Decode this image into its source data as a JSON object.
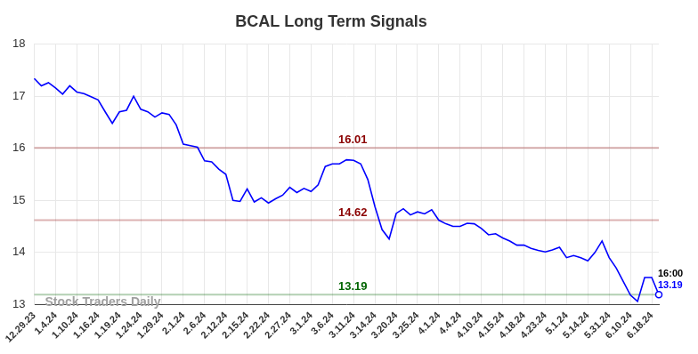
{
  "chart_data": {
    "type": "line",
    "title": "BCAL Long Term Signals",
    "categories": [
      "12.29.23",
      null,
      null,
      "1.4.24",
      null,
      null,
      "1.10.24",
      null,
      null,
      "1.16.24",
      null,
      null,
      "1.19.24",
      null,
      null,
      "1.24.24",
      null,
      null,
      "1.29.24",
      null,
      null,
      "2.1.24",
      null,
      null,
      "2.6.24",
      null,
      null,
      "2.12.24",
      null,
      null,
      "2.15.24",
      null,
      null,
      "2.22.24",
      null,
      null,
      "2.27.24",
      null,
      null,
      "3.1.24",
      null,
      null,
      "3.6.24",
      null,
      null,
      "3.11.24",
      null,
      null,
      "3.14.24",
      null,
      null,
      "3.20.24",
      null,
      null,
      "3.25.24",
      null,
      null,
      "4.1.24",
      null,
      null,
      "4.4.24",
      null,
      null,
      "4.10.24",
      null,
      null,
      "4.15.24",
      null,
      null,
      "4.18.24",
      null,
      null,
      "4.23.24",
      null,
      null,
      "5.1.24",
      null,
      null,
      "5.14.24",
      null,
      null,
      "5.31.24",
      null,
      null,
      "6.10.24",
      null,
      null,
      "6.18.24",
      null
    ],
    "values": [
      17.34,
      17.2,
      17.26,
      17.16,
      17.04,
      17.2,
      17.08,
      17.05,
      16.99,
      16.93,
      16.7,
      16.48,
      16.7,
      16.73,
      17.0,
      16.75,
      16.7,
      16.6,
      16.68,
      16.65,
      16.45,
      16.08,
      16.05,
      16.02,
      15.76,
      15.74,
      15.6,
      15.5,
      15.0,
      14.98,
      15.22,
      14.97,
      15.05,
      14.95,
      15.03,
      15.1,
      15.25,
      15.15,
      15.23,
      15.17,
      15.3,
      15.65,
      15.7,
      15.7,
      15.78,
      15.77,
      15.7,
      15.4,
      14.88,
      14.44,
      14.26,
      14.75,
      14.84,
      14.72,
      14.78,
      14.74,
      14.82,
      14.62,
      14.55,
      14.5,
      14.5,
      14.56,
      14.55,
      14.46,
      14.34,
      14.36,
      14.28,
      14.22,
      14.14,
      14.14,
      14.08,
      14.04,
      14.01,
      14.05,
      14.1,
      13.9,
      13.94,
      13.9,
      13.84,
      14.0,
      14.22,
      13.9,
      13.7,
      13.44,
      13.18,
      13.06,
      13.52,
      13.52,
      13.19
    ],
    "color": "#0000ff",
    "ylim": [
      13,
      18
    ],
    "yticks": [
      13,
      14,
      15,
      16,
      17,
      18
    ],
    "grid": true,
    "levels": [
      {
        "value": 16.01,
        "color": "#8b0000"
      },
      {
        "value": 14.62,
        "color": "#8b0000"
      },
      {
        "value": 13.19,
        "color": "#006400"
      }
    ],
    "last_point": {
      "time": "16:00",
      "value_label": "13.19"
    },
    "watermark": "Stock Traders Daily"
  }
}
